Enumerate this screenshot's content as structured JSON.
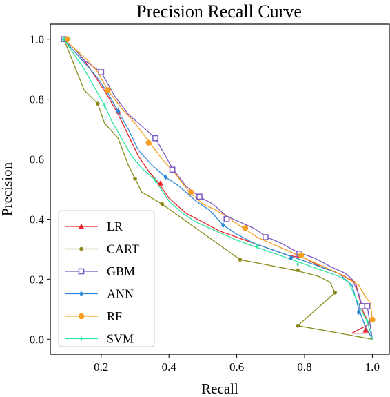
{
  "chart_data": {
    "type": "line",
    "title": "Precision Recall Curve",
    "xlabel": "Recall",
    "ylabel": "Precision",
    "xlim": [
      0.05,
      1.05
    ],
    "ylim": [
      -0.05,
      1.05
    ],
    "xticks": [
      "0.2",
      "0.4",
      "0.6",
      "0.8",
      "1.0"
    ],
    "yticks": [
      "0.0",
      "0.2",
      "0.4",
      "0.6",
      "0.8",
      "1.0"
    ],
    "grid": false,
    "legend_position": "lower-left",
    "series": [
      {
        "name": "LR",
        "color": "#e8242a",
        "marker": "triangle",
        "points": [
          [
            0.09,
            1.0
          ],
          [
            0.12,
            0.97
          ],
          [
            0.15,
            0.93
          ],
          [
            0.18,
            0.88
          ],
          [
            0.22,
            0.81
          ],
          [
            0.25,
            0.75
          ],
          [
            0.28,
            0.68
          ],
          [
            0.31,
            0.61
          ],
          [
            0.34,
            0.56
          ],
          [
            0.37,
            0.52
          ],
          [
            0.4,
            0.47
          ],
          [
            0.45,
            0.42
          ],
          [
            0.5,
            0.39
          ],
          [
            0.55,
            0.36
          ],
          [
            0.6,
            0.34
          ],
          [
            0.65,
            0.32
          ],
          [
            0.7,
            0.3
          ],
          [
            0.75,
            0.28
          ],
          [
            0.8,
            0.27
          ],
          [
            0.85,
            0.24
          ],
          [
            0.9,
            0.22
          ],
          [
            0.95,
            0.19
          ],
          [
            0.97,
            0.1
          ],
          [
            0.99,
            0.05
          ],
          [
            0.94,
            0.02
          ],
          [
            1.0,
            0.02
          ]
        ],
        "markers": [
          [
            0.09,
            1.0
          ],
          [
            0.25,
            0.76
          ],
          [
            0.375,
            0.52
          ],
          [
            0.98,
            0.03
          ]
        ]
      },
      {
        "name": "CART",
        "color": "#8b8b1a",
        "marker": "circle",
        "points": [
          [
            0.09,
            1.0
          ],
          [
            0.15,
            0.83
          ],
          [
            0.19,
            0.785
          ],
          [
            0.21,
            0.72
          ],
          [
            0.25,
            0.67
          ],
          [
            0.28,
            0.58
          ],
          [
            0.3,
            0.535
          ],
          [
            0.32,
            0.49
          ],
          [
            0.38,
            0.45
          ],
          [
            0.61,
            0.265
          ],
          [
            0.77,
            0.23
          ],
          [
            0.84,
            0.21
          ],
          [
            0.875,
            0.19
          ],
          [
            0.89,
            0.155
          ],
          [
            0.78,
            0.045
          ],
          [
            1.0,
            0.0
          ]
        ],
        "markers": [
          [
            0.19,
            0.785
          ],
          [
            0.3,
            0.535
          ],
          [
            0.38,
            0.45
          ],
          [
            0.61,
            0.265
          ],
          [
            0.78,
            0.23
          ],
          [
            0.89,
            0.155
          ],
          [
            0.78,
            0.045
          ]
        ]
      },
      {
        "name": "GBM",
        "color": "#7a59c2",
        "marker": "square",
        "points": [
          [
            0.09,
            1.0
          ],
          [
            0.12,
            0.97
          ],
          [
            0.15,
            0.93
          ],
          [
            0.2,
            0.89
          ],
          [
            0.24,
            0.81
          ],
          [
            0.28,
            0.75
          ],
          [
            0.32,
            0.71
          ],
          [
            0.36,
            0.67
          ],
          [
            0.41,
            0.57
          ],
          [
            0.45,
            0.51
          ],
          [
            0.49,
            0.475
          ],
          [
            0.53,
            0.45
          ],
          [
            0.57,
            0.41
          ],
          [
            0.61,
            0.39
          ],
          [
            0.65,
            0.37
          ],
          [
            0.69,
            0.34
          ],
          [
            0.73,
            0.32
          ],
          [
            0.78,
            0.29
          ],
          [
            0.83,
            0.27
          ],
          [
            0.88,
            0.24
          ],
          [
            0.92,
            0.22
          ],
          [
            0.94,
            0.2
          ],
          [
            0.96,
            0.15
          ],
          [
            0.97,
            0.11
          ],
          [
            0.985,
            0.11
          ],
          [
            1.0,
            0.0
          ]
        ],
        "markers": [
          [
            0.09,
            1.0
          ],
          [
            0.2,
            0.89
          ],
          [
            0.36,
            0.67
          ],
          [
            0.41,
            0.565
          ],
          [
            0.49,
            0.475
          ],
          [
            0.57,
            0.4
          ],
          [
            0.685,
            0.34
          ],
          [
            0.785,
            0.285
          ],
          [
            0.97,
            0.11
          ],
          [
            0.985,
            0.11
          ]
        ]
      },
      {
        "name": "ANN",
        "color": "#2e88d8",
        "marker": "diamond",
        "points": [
          [
            0.09,
            1.0
          ],
          [
            0.12,
            0.96
          ],
          [
            0.16,
            0.91
          ],
          [
            0.19,
            0.87
          ],
          [
            0.22,
            0.82
          ],
          [
            0.25,
            0.76
          ],
          [
            0.28,
            0.7
          ],
          [
            0.31,
            0.63
          ],
          [
            0.35,
            0.58
          ],
          [
            0.39,
            0.54
          ],
          [
            0.43,
            0.51
          ],
          [
            0.48,
            0.46
          ],
          [
            0.52,
            0.43
          ],
          [
            0.56,
            0.38
          ],
          [
            0.6,
            0.35
          ],
          [
            0.65,
            0.32
          ],
          [
            0.7,
            0.3
          ],
          [
            0.75,
            0.28
          ],
          [
            0.8,
            0.26
          ],
          [
            0.85,
            0.24
          ],
          [
            0.9,
            0.22
          ],
          [
            0.94,
            0.18
          ],
          [
            0.96,
            0.1
          ],
          [
            0.98,
            0.04
          ],
          [
            1.0,
            0.0
          ]
        ],
        "markers": [
          [
            0.09,
            1.0
          ],
          [
            0.25,
            0.76
          ],
          [
            0.39,
            0.54
          ],
          [
            0.56,
            0.38
          ],
          [
            0.76,
            0.27
          ],
          [
            0.96,
            0.09
          ]
        ]
      },
      {
        "name": "RF",
        "color": "#f5a023",
        "marker": "octagon",
        "points": [
          [
            0.09,
            1.0
          ],
          [
            0.12,
            0.97
          ],
          [
            0.16,
            0.93
          ],
          [
            0.19,
            0.89
          ],
          [
            0.22,
            0.83
          ],
          [
            0.26,
            0.77
          ],
          [
            0.3,
            0.72
          ],
          [
            0.34,
            0.66
          ],
          [
            0.38,
            0.6
          ],
          [
            0.42,
            0.55
          ],
          [
            0.46,
            0.49
          ],
          [
            0.5,
            0.45
          ],
          [
            0.54,
            0.43
          ],
          [
            0.58,
            0.4
          ],
          [
            0.62,
            0.37
          ],
          [
            0.66,
            0.34
          ],
          [
            0.7,
            0.32
          ],
          [
            0.74,
            0.3
          ],
          [
            0.78,
            0.28
          ],
          [
            0.82,
            0.26
          ],
          [
            0.86,
            0.24
          ],
          [
            0.9,
            0.22
          ],
          [
            0.93,
            0.2
          ],
          [
            0.96,
            0.18
          ],
          [
            0.98,
            0.14
          ],
          [
            0.995,
            0.12
          ],
          [
            1.0,
            0.06
          ]
        ],
        "markers": [
          [
            0.1,
            1.0
          ],
          [
            0.22,
            0.83
          ],
          [
            0.34,
            0.655
          ],
          [
            0.465,
            0.49
          ],
          [
            0.625,
            0.37
          ],
          [
            0.79,
            0.28
          ],
          [
            1.0,
            0.065
          ]
        ]
      },
      {
        "name": "SVM",
        "color": "#2ee8a0",
        "marker": "thin-diamond",
        "points": [
          [
            0.09,
            1.0
          ],
          [
            0.12,
            0.95
          ],
          [
            0.15,
            0.9
          ],
          [
            0.18,
            0.84
          ],
          [
            0.21,
            0.78
          ],
          [
            0.23,
            0.73
          ],
          [
            0.26,
            0.67
          ],
          [
            0.29,
            0.61
          ],
          [
            0.32,
            0.57
          ],
          [
            0.36,
            0.53
          ],
          [
            0.4,
            0.46
          ],
          [
            0.44,
            0.42
          ],
          [
            0.48,
            0.39
          ],
          [
            0.52,
            0.37
          ],
          [
            0.56,
            0.35
          ],
          [
            0.6,
            0.33
          ],
          [
            0.65,
            0.31
          ],
          [
            0.7,
            0.29
          ],
          [
            0.75,
            0.27
          ],
          [
            0.8,
            0.25
          ],
          [
            0.85,
            0.23
          ],
          [
            0.9,
            0.21
          ],
          [
            0.93,
            0.19
          ],
          [
            0.95,
            0.14
          ],
          [
            0.97,
            0.09
          ],
          [
            0.985,
            0.06
          ],
          [
            1.0,
            0.0
          ]
        ],
        "markers": [
          [
            0.09,
            1.0
          ],
          [
            0.21,
            0.78
          ],
          [
            0.36,
            0.53
          ],
          [
            0.66,
            0.31
          ],
          [
            0.78,
            0.25
          ],
          [
            0.985,
            0.06
          ]
        ]
      }
    ]
  }
}
